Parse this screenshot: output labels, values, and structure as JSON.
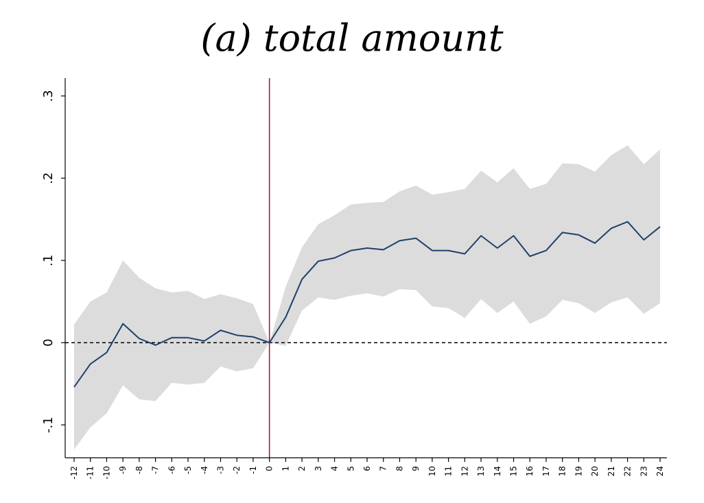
{
  "chart_data": {
    "type": "line",
    "title": "(a) total amount",
    "xlabel": "",
    "ylabel": "",
    "x": [
      -12,
      -11,
      -10,
      -9,
      -8,
      -7,
      -6,
      -5,
      -4,
      -3,
      -2,
      -1,
      0,
      1,
      2,
      3,
      4,
      5,
      6,
      7,
      8,
      9,
      10,
      11,
      12,
      13,
      14,
      15,
      16,
      17,
      18,
      19,
      20,
      21,
      22,
      23,
      24
    ],
    "xlim": [
      -12,
      24
    ],
    "ylim": [
      -0.14,
      0.31
    ],
    "y_ticks": [
      -0.1,
      0,
      0.1,
      0.2,
      0.3
    ],
    "y_tick_labels": [
      "-.1",
      "0",
      ".1",
      ".2",
      ".3"
    ],
    "x_tick_labels": [
      "-12",
      "-11",
      "-10",
      "-9",
      "-8",
      "-7",
      "-6",
      "-5",
      "-4",
      "-3",
      "-2",
      "-1",
      "0",
      "1",
      "2",
      "3",
      "4",
      "5",
      "6",
      "7",
      "8",
      "9",
      "10",
      "11",
      "12",
      "13",
      "14",
      "15",
      "16",
      "17",
      "18",
      "19",
      "20",
      "21",
      "22",
      "23",
      "24"
    ],
    "series": [
      {
        "kind": "line",
        "color": "#1f3f6b",
        "values": [
          -0.054,
          -0.026,
          -0.012,
          0.023,
          0.005,
          -0.003,
          0.006,
          0.006,
          0.002,
          0.015,
          0.009,
          0.007,
          0.0,
          0.031,
          0.077,
          0.099,
          0.103,
          0.112,
          0.115,
          0.113,
          0.124,
          0.127,
          0.112,
          0.112,
          0.108,
          0.13,
          0.115,
          0.13,
          0.105,
          0.112,
          0.134,
          0.131,
          0.121,
          0.139,
          0.147,
          0.125,
          0.141
        ]
      },
      {
        "kind": "band-upper",
        "color": "#dcdcdc",
        "values": [
          0.022,
          0.05,
          0.061,
          0.1,
          0.079,
          0.066,
          0.061,
          0.063,
          0.053,
          0.059,
          0.054,
          0.047,
          0.0,
          0.068,
          0.116,
          0.144,
          0.155,
          0.168,
          0.17,
          0.171,
          0.184,
          0.191,
          0.18,
          0.183,
          0.187,
          0.209,
          0.195,
          0.212,
          0.187,
          0.193,
          0.218,
          0.217,
          0.208,
          0.228,
          0.24,
          0.217,
          0.235
        ]
      },
      {
        "kind": "band-lower",
        "color": "#dcdcdc",
        "values": [
          -0.13,
          -0.103,
          -0.086,
          -0.052,
          -0.069,
          -0.071,
          -0.049,
          -0.051,
          -0.049,
          -0.029,
          -0.035,
          -0.031,
          0.0,
          -0.004,
          0.039,
          0.055,
          0.052,
          0.057,
          0.06,
          0.056,
          0.065,
          0.064,
          0.044,
          0.042,
          0.03,
          0.053,
          0.036,
          0.05,
          0.023,
          0.032,
          0.052,
          0.048,
          0.036,
          0.049,
          0.055,
          0.035,
          0.048
        ]
      }
    ],
    "reference_lines": [
      {
        "orientation": "vertical",
        "x": 0,
        "color": "#a51c30",
        "style": "solid"
      },
      {
        "orientation": "horizontal",
        "y": 0,
        "color": "#000000",
        "style": "dashed"
      }
    ],
    "grid": false,
    "legend": "none"
  }
}
